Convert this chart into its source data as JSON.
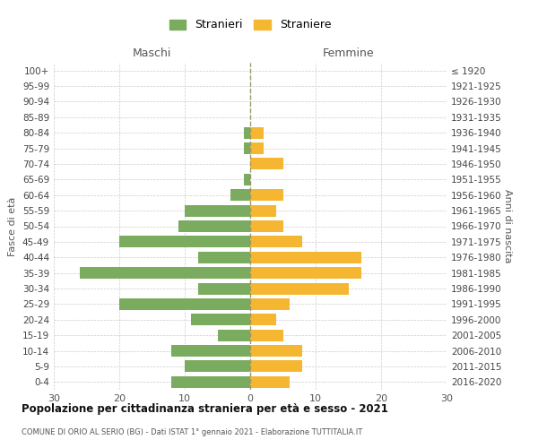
{
  "age_groups": [
    "100+",
    "95-99",
    "90-94",
    "85-89",
    "80-84",
    "75-79",
    "70-74",
    "65-69",
    "60-64",
    "55-59",
    "50-54",
    "45-49",
    "40-44",
    "35-39",
    "30-34",
    "25-29",
    "20-24",
    "15-19",
    "10-14",
    "5-9",
    "0-4"
  ],
  "birth_years": [
    "≤ 1920",
    "1921-1925",
    "1926-1930",
    "1931-1935",
    "1936-1940",
    "1941-1945",
    "1946-1950",
    "1951-1955",
    "1956-1960",
    "1961-1965",
    "1966-1970",
    "1971-1975",
    "1976-1980",
    "1981-1985",
    "1986-1990",
    "1991-1995",
    "1996-2000",
    "2001-2005",
    "2006-2010",
    "2011-2015",
    "2016-2020"
  ],
  "maschi": [
    0,
    0,
    0,
    0,
    1,
    1,
    0,
    1,
    3,
    10,
    11,
    20,
    8,
    26,
    8,
    20,
    9,
    5,
    12,
    10,
    12
  ],
  "femmine": [
    0,
    0,
    0,
    0,
    2,
    2,
    5,
    0,
    5,
    4,
    5,
    8,
    17,
    17,
    15,
    6,
    4,
    5,
    8,
    8,
    6
  ],
  "male_color": "#7aab5e",
  "female_color": "#f5b731",
  "background_color": "#ffffff",
  "grid_color": "#cccccc",
  "title": "Popolazione per cittadinanza straniera per età e sesso - 2021",
  "subtitle": "COMUNE DI ORIO AL SERIO (BG) - Dati ISTAT 1° gennaio 2021 - Elaborazione TUTTITALIA.IT",
  "xlabel_left": "Maschi",
  "xlabel_right": "Femmine",
  "ylabel_left": "Fasce di età",
  "ylabel_right": "Anni di nascita",
  "legend_male": "Stranieri",
  "legend_female": "Straniere",
  "xlim": 30,
  "dashed_line_color": "#999966"
}
